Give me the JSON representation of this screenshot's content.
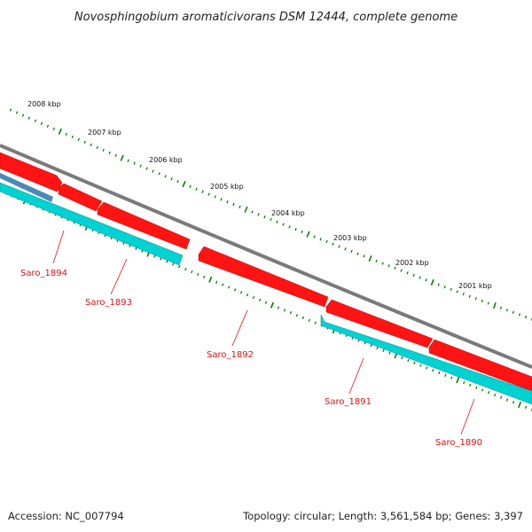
{
  "title": "Novosphingobium aromaticivorans DSM 12444, complete genome",
  "footer": {
    "accession": "Accession: NC_007794",
    "summary": "Topology: circular; Length: 3,561,584 bp; Genes: 3,397"
  },
  "scale_labels": [
    "2008 kbp",
    "2007 kbp",
    "2006 kbp",
    "2005 kbp",
    "2004 kbp",
    "2003 kbp",
    "2002 kbp",
    "2001 kbp"
  ],
  "genes": [
    {
      "name": "Saro_1894"
    },
    {
      "name": "Saro_1893"
    },
    {
      "name": "Saro_1892"
    },
    {
      "name": "Saro_1891"
    },
    {
      "name": "Saro_1890"
    }
  ],
  "colors": {
    "backbone": "#808080",
    "cds_forward": "#ff0000",
    "gene_feature": "#00d2d2",
    "other_feature": "#4a8ab8",
    "scale_ticks": "#008000",
    "gene_label": "#e01010"
  }
}
